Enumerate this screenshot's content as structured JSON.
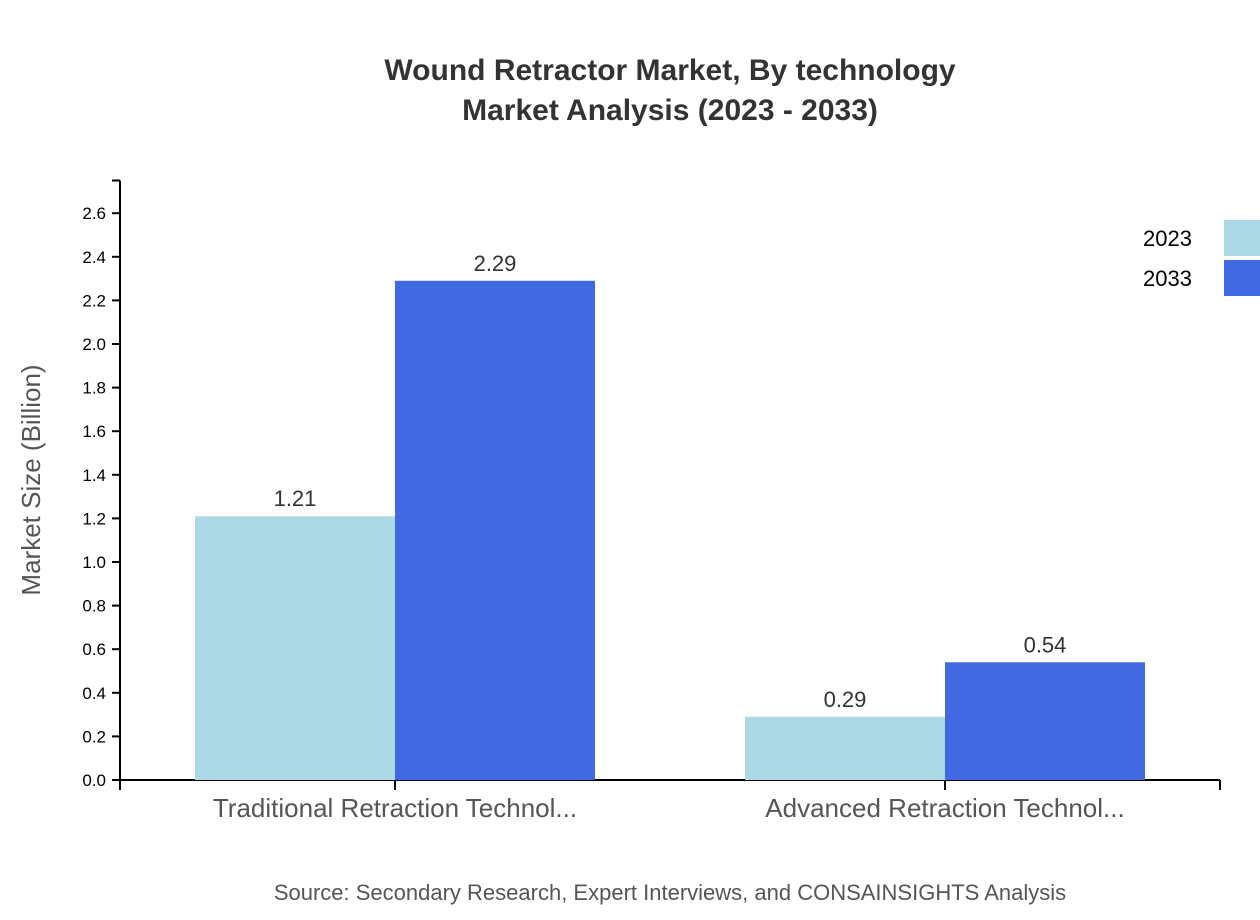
{
  "chart_data": {
    "type": "bar",
    "title": "Wound Retractor Market, By technology",
    "subtitle": "Market Analysis (2023 - 2033)",
    "xlabel": "",
    "ylabel": "Market Size (Billion)",
    "ylim": [
      0,
      2.75
    ],
    "yticks": [
      0.0,
      0.2,
      0.4,
      0.6,
      0.8,
      1.0,
      1.2,
      1.4,
      1.6,
      1.8,
      2.0,
      2.2,
      2.4,
      2.6
    ],
    "categories": [
      "Traditional Retraction Technol...",
      "Advanced Retraction Technol..."
    ],
    "series": [
      {
        "name": "2023",
        "values": [
          1.21,
          0.29
        ],
        "color": "#ADD8E6"
      },
      {
        "name": "2033",
        "values": [
          2.29,
          0.54
        ],
        "color": "#4169E1"
      }
    ],
    "grid": false,
    "legend": "top-right",
    "source": "Source: Secondary Research, Expert Interviews, and CONSAINSIGHTS Analysis"
  }
}
